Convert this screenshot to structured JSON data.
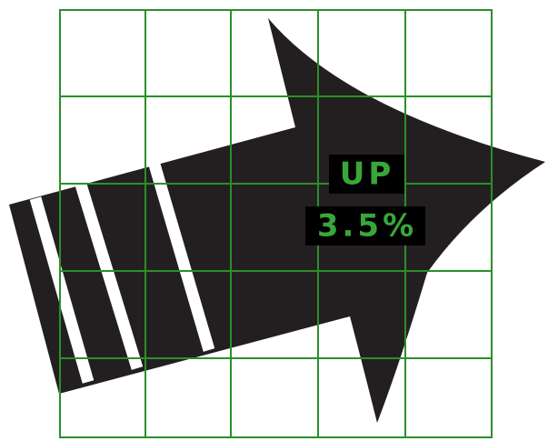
{
  "label": {
    "direction": "UP",
    "change": "3.5%"
  }
}
